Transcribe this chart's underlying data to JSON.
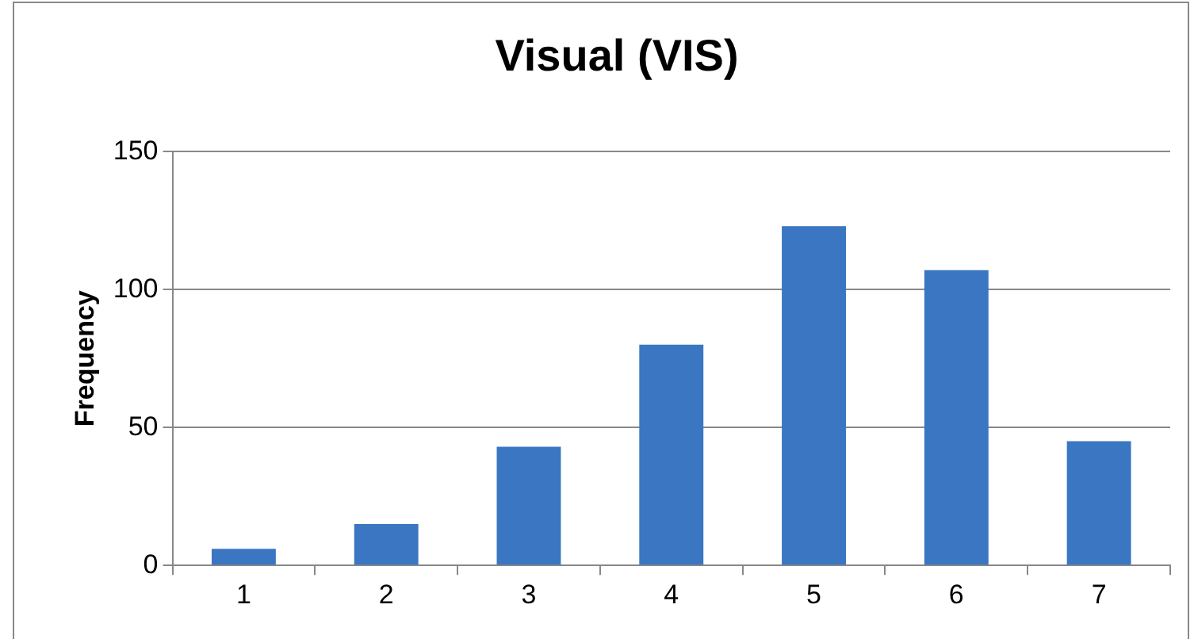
{
  "chart_data": {
    "type": "bar",
    "title": "Visual (VIS)",
    "ylabel": "Frequency",
    "categories": [
      "1",
      "2",
      "3",
      "4",
      "5",
      "6",
      "7"
    ],
    "values": [
      6,
      15,
      43,
      80,
      123,
      107,
      45
    ],
    "color": "#3a76c2",
    "ylim": [
      0,
      150
    ],
    "yticks": [
      0,
      50,
      100,
      150
    ],
    "grid": "y",
    "legend": false
  }
}
